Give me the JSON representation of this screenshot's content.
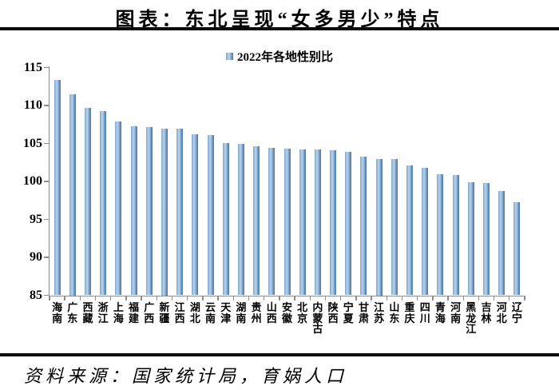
{
  "title": "图表：东北呈现“女多男少”特点",
  "source": "资料来源：国家统计局，育娲人口",
  "chart_data": {
    "type": "bar",
    "title": "图表：东北呈现“女多男少”特点",
    "legend": "2022年各地性别比",
    "legend_position": "top-center",
    "grid": false,
    "ylim": [
      85,
      115
    ],
    "yticks": [
      85,
      90,
      95,
      100,
      105,
      110,
      115
    ],
    "xlabel": "",
    "ylabel": "",
    "categories": [
      "海南",
      "广东",
      "西藏",
      "浙江",
      "上海",
      "福建",
      "广西",
      "新疆",
      "江西",
      "湖北",
      "云南",
      "天津",
      "湖南",
      "贵州",
      "山西",
      "安徽",
      "北京",
      "内蒙古",
      "陕西",
      "宁夏",
      "甘肃",
      "江苏",
      "山东",
      "重庆",
      "四川",
      "青海",
      "河南",
      "黑龙江",
      "吉林",
      "河北",
      "辽宁"
    ],
    "values": [
      113.4,
      111.5,
      109.7,
      109.3,
      107.9,
      107.3,
      107.2,
      107.0,
      106.9,
      106.2,
      106.1,
      105.1,
      104.9,
      104.6,
      104.4,
      104.3,
      104.2,
      104.2,
      104.1,
      103.9,
      103.3,
      103.0,
      102.9,
      102.1,
      101.8,
      100.9,
      100.8,
      99.9,
      99.8,
      98.7,
      97.3
    ],
    "colors": {
      "bar_light": "#b6cee7",
      "bar_mid": "#7da3cf",
      "bar_dark": "#4f7aa9",
      "axis": "#8c8c8c",
      "rule": "#0a0a0a",
      "text": "#000000"
    }
  }
}
